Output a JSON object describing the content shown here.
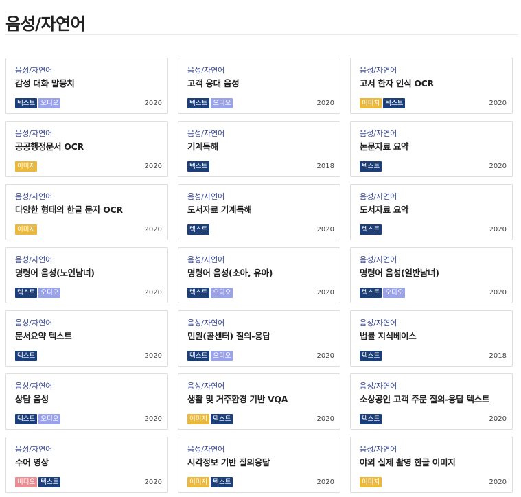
{
  "page": {
    "title": "음성/자연어"
  },
  "tag_colors": {
    "텍스트": "#1c3f7a",
    "오디오": "#9aa3ea",
    "이미지": "#e9b83c",
    "비디오": "#e58f94"
  },
  "cards": [
    {
      "category": "음성/자연어",
      "title": "감성 대화 말뭉치",
      "tags": [
        "텍스트",
        "오디오"
      ],
      "year": "2020"
    },
    {
      "category": "음성/자연어",
      "title": "고객 응대 음성",
      "tags": [
        "텍스트",
        "오디오"
      ],
      "year": "2020"
    },
    {
      "category": "음성/자연어",
      "title": "고서 한자 인식 OCR",
      "tags": [
        "이미지",
        "텍스트"
      ],
      "year": "2020"
    },
    {
      "category": "음성/자연어",
      "title": "공공행정문서 OCR",
      "tags": [
        "이미지"
      ],
      "year": "2020"
    },
    {
      "category": "음성/자연어",
      "title": "기계독해",
      "tags": [
        "텍스트"
      ],
      "year": "2018"
    },
    {
      "category": "음성/자연어",
      "title": "논문자료 요약",
      "tags": [
        "텍스트"
      ],
      "year": "2020"
    },
    {
      "category": "음성/자연어",
      "title": "다양한 형태의 한글 문자 OCR",
      "tags": [
        "이미지"
      ],
      "year": "2020"
    },
    {
      "category": "음성/자연어",
      "title": "도서자료 기계독해",
      "tags": [
        "텍스트"
      ],
      "year": "2020"
    },
    {
      "category": "음성/자연어",
      "title": "도서자료 요약",
      "tags": [
        "텍스트"
      ],
      "year": "2020"
    },
    {
      "category": "음성/자연어",
      "title": "명령어 음성(노인남녀)",
      "tags": [
        "텍스트",
        "오디오"
      ],
      "year": "2020"
    },
    {
      "category": "음성/자연어",
      "title": "명령어 음성(소아, 유아)",
      "tags": [
        "텍스트",
        "오디오"
      ],
      "year": "2020"
    },
    {
      "category": "음성/자연어",
      "title": "명령어 음성(일반남녀)",
      "tags": [
        "텍스트",
        "오디오"
      ],
      "year": "2020"
    },
    {
      "category": "음성/자연어",
      "title": "문서요약 텍스트",
      "tags": [
        "텍스트"
      ],
      "year": "2020"
    },
    {
      "category": "음성/자연어",
      "title": "민원(콜센터) 질의-응답",
      "tags": [
        "텍스트",
        "오디오"
      ],
      "year": "2020"
    },
    {
      "category": "음성/자연어",
      "title": "법률 지식베이스",
      "tags": [
        "텍스트"
      ],
      "year": "2018"
    },
    {
      "category": "음성/자연어",
      "title": "상담 음성",
      "tags": [
        "텍스트",
        "오디오"
      ],
      "year": "2020"
    },
    {
      "category": "음성/자연어",
      "title": "생활 및 거주환경 기반 VQA",
      "tags": [
        "이미지",
        "텍스트"
      ],
      "year": "2020"
    },
    {
      "category": "음성/자연어",
      "title": "소상공인 고객 주문 질의-응답 텍스트",
      "tags": [
        "텍스트"
      ],
      "year": "2020"
    },
    {
      "category": "음성/자연어",
      "title": "수어 영상",
      "tags": [
        "비디오",
        "텍스트"
      ],
      "year": "2020"
    },
    {
      "category": "음성/자연어",
      "title": "시각정보 기반 질의응답",
      "tags": [
        "이미지",
        "텍스트"
      ],
      "year": "2020"
    },
    {
      "category": "음성/자연어",
      "title": "야외 실제 촬영 한글 이미지",
      "tags": [
        "이미지"
      ],
      "year": "2020"
    }
  ]
}
